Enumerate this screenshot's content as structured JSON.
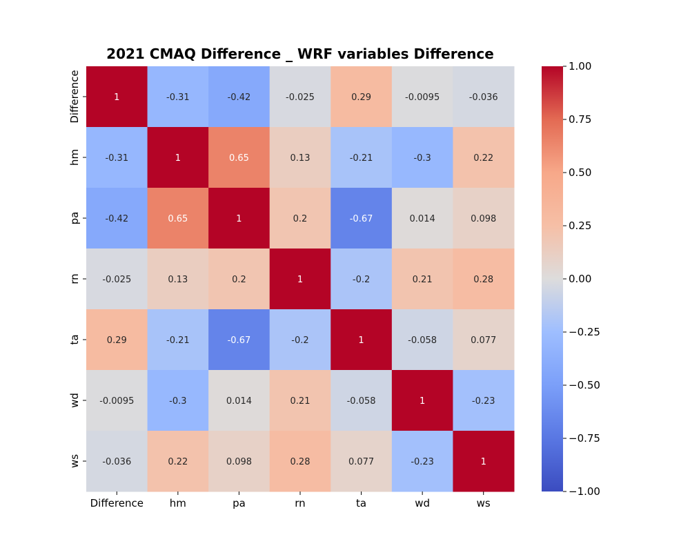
{
  "chart_data": {
    "type": "heatmap",
    "title": "2021 CMAQ Difference _ WRF variables Difference",
    "x_labels": [
      "Difference",
      "hm",
      "pa",
      "rn",
      "ta",
      "wd",
      "ws"
    ],
    "y_labels": [
      "Difference",
      "hm",
      "pa",
      "rn",
      "ta",
      "wd",
      "ws"
    ],
    "values": [
      [
        1,
        -0.31,
        -0.42,
        -0.025,
        0.29,
        -0.0095,
        -0.036
      ],
      [
        -0.31,
        1,
        0.65,
        0.13,
        -0.21,
        -0.3,
        0.22
      ],
      [
        -0.42,
        0.65,
        1,
        0.2,
        -0.67,
        0.014,
        0.098
      ],
      [
        -0.025,
        0.13,
        0.2,
        1,
        -0.2,
        0.21,
        0.28
      ],
      [
        0.29,
        -0.21,
        -0.67,
        -0.2,
        1,
        -0.058,
        0.077
      ],
      [
        -0.0095,
        -0.3,
        0.014,
        0.21,
        -0.058,
        1,
        -0.23
      ],
      [
        -0.036,
        0.22,
        0.098,
        0.28,
        0.077,
        -0.23,
        1
      ]
    ],
    "annotations": [
      [
        "1",
        "-0.31",
        "-0.42",
        "-0.025",
        "0.29",
        "-0.0095",
        "-0.036"
      ],
      [
        "-0.31",
        "1",
        "0.65",
        "0.13",
        "-0.21",
        "-0.3",
        "0.22"
      ],
      [
        "-0.42",
        "0.65",
        "1",
        "0.2",
        "-0.67",
        "0.014",
        "0.098"
      ],
      [
        "-0.025",
        "0.13",
        "0.2",
        "1",
        "-0.2",
        "0.21",
        "0.28"
      ],
      [
        "0.29",
        "-0.21",
        "-0.67",
        "-0.2",
        "1",
        "-0.058",
        "0.077"
      ],
      [
        "-0.0095",
        "-0.3",
        "0.014",
        "0.21",
        "-0.058",
        "1",
        "-0.23"
      ],
      [
        "-0.036",
        "0.22",
        "0.098",
        "0.28",
        "0.077",
        "-0.23",
        "1"
      ]
    ],
    "colormap": "coolwarm",
    "vmin": -1.0,
    "vmax": 1.0,
    "colorbar_ticks": [
      1.0,
      0.75,
      0.5,
      0.25,
      0.0,
      -0.25,
      -0.5,
      -0.75,
      -1.0
    ],
    "colorbar_tick_labels": [
      "1.00",
      "0.75",
      "0.50",
      "0.25",
      "0.00",
      "−0.25",
      "−0.50",
      "−0.75",
      "−1.00"
    ]
  }
}
